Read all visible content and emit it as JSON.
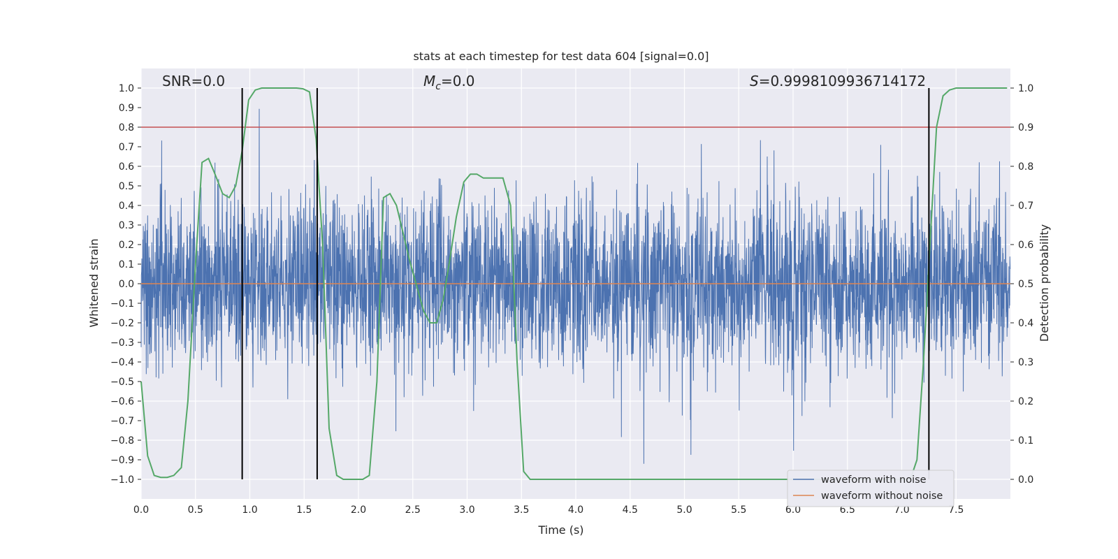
{
  "chart_data": {
    "type": "line",
    "title": "stats at each timestep for test data 604 [signal=0.0]",
    "xlabel": "Time (s)",
    "ylabel": "Whitened strain",
    "y2label": "Detection probability",
    "xlim": [
      0.0,
      8.0
    ],
    "ylim": [
      -1.1,
      1.1
    ],
    "y2lim": [
      -0.05,
      1.05
    ],
    "x_ticks": [
      "0.0",
      "0.5",
      "1.0",
      "1.5",
      "2.0",
      "2.5",
      "3.0",
      "3.5",
      "4.0",
      "4.5",
      "5.0",
      "5.5",
      "6.0",
      "6.5",
      "7.0",
      "7.5"
    ],
    "y_ticks": [
      "1.0",
      "0.9",
      "0.8",
      "0.7",
      "0.6",
      "0.5",
      "0.4",
      "0.3",
      "0.2",
      "0.1",
      "0.0",
      "−0.1",
      "−0.2",
      "−0.3",
      "−0.4",
      "−0.5",
      "−0.6",
      "−0.7",
      "−0.8",
      "−0.9",
      "−1.0"
    ],
    "y2_ticks": [
      "1.0",
      "0.9",
      "0.8",
      "0.7",
      "0.6",
      "0.5",
      "0.4",
      "0.3",
      "0.2",
      "0.1",
      "0.0"
    ],
    "grid": true,
    "annotations": {
      "snr": "SNR=0.0",
      "mc_symbol": "M",
      "mc_sub": "c",
      "mc_value": "=0.0",
      "s_symbol": "S",
      "s_value": "=0.9998109936714172"
    },
    "threshold": {
      "value": 0.9,
      "axis": "y2",
      "color": "#c44e52"
    },
    "vertical_markers": [
      0.93,
      1.62,
      7.25
    ],
    "series": [
      {
        "name": "waveform with noise",
        "color": "#4c72b0",
        "description": "whitened noise, amplitude mostly within ±0.45 with spikes up to about ±1.0"
      },
      {
        "name": "waveform without noise",
        "color": "#dd8452",
        "value": 0.0
      },
      {
        "name": "Detection probability",
        "axis": "y2",
        "color": "#55a868",
        "x": [
          0.0,
          0.06,
          0.12,
          0.18,
          0.24,
          0.3,
          0.37,
          0.43,
          0.5,
          0.56,
          0.62,
          0.68,
          0.75,
          0.81,
          0.87,
          0.93,
          0.99,
          1.05,
          1.11,
          1.18,
          1.24,
          1.3,
          1.36,
          1.43,
          1.49,
          1.55,
          1.61,
          1.67,
          1.73,
          1.8,
          1.86,
          1.92,
          1.98,
          2.04,
          2.1,
          2.17,
          2.23,
          2.29,
          2.35,
          2.41,
          2.47,
          2.54,
          2.6,
          2.66,
          2.72,
          2.78,
          2.84,
          2.9,
          2.97,
          3.03,
          3.09,
          3.15,
          3.21,
          3.27,
          3.33,
          3.4,
          3.46,
          3.52,
          3.58,
          3.64,
          3.7,
          3.76,
          3.82,
          3.89,
          7.08,
          7.14,
          7.2,
          7.26,
          7.32,
          7.38,
          7.44,
          7.5,
          7.56,
          7.62,
          7.68,
          7.74,
          7.8,
          7.86,
          7.92,
          7.97
        ],
        "values": [
          0.25,
          0.06,
          0.01,
          0.005,
          0.005,
          0.01,
          0.03,
          0.2,
          0.55,
          0.81,
          0.82,
          0.78,
          0.73,
          0.72,
          0.75,
          0.84,
          0.97,
          0.995,
          1.0,
          1.0,
          1.0,
          1.0,
          1.0,
          1.0,
          0.998,
          0.99,
          0.87,
          0.6,
          0.13,
          0.01,
          0.0,
          0.0,
          0.0,
          0.0,
          0.01,
          0.25,
          0.72,
          0.73,
          0.7,
          0.63,
          0.56,
          0.49,
          0.43,
          0.4,
          0.4,
          0.46,
          0.56,
          0.67,
          0.76,
          0.78,
          0.78,
          0.77,
          0.77,
          0.77,
          0.77,
          0.7,
          0.3,
          0.02,
          0.0,
          0.0,
          0.0,
          0.0,
          0.0,
          0.0,
          0.0,
          0.05,
          0.3,
          0.6,
          0.9,
          0.98,
          0.995,
          1.0,
          1.0,
          1.0,
          1.0,
          1.0,
          1.0,
          1.0,
          1.0,
          1.0
        ]
      }
    ],
    "legend_position": "lower-right"
  }
}
